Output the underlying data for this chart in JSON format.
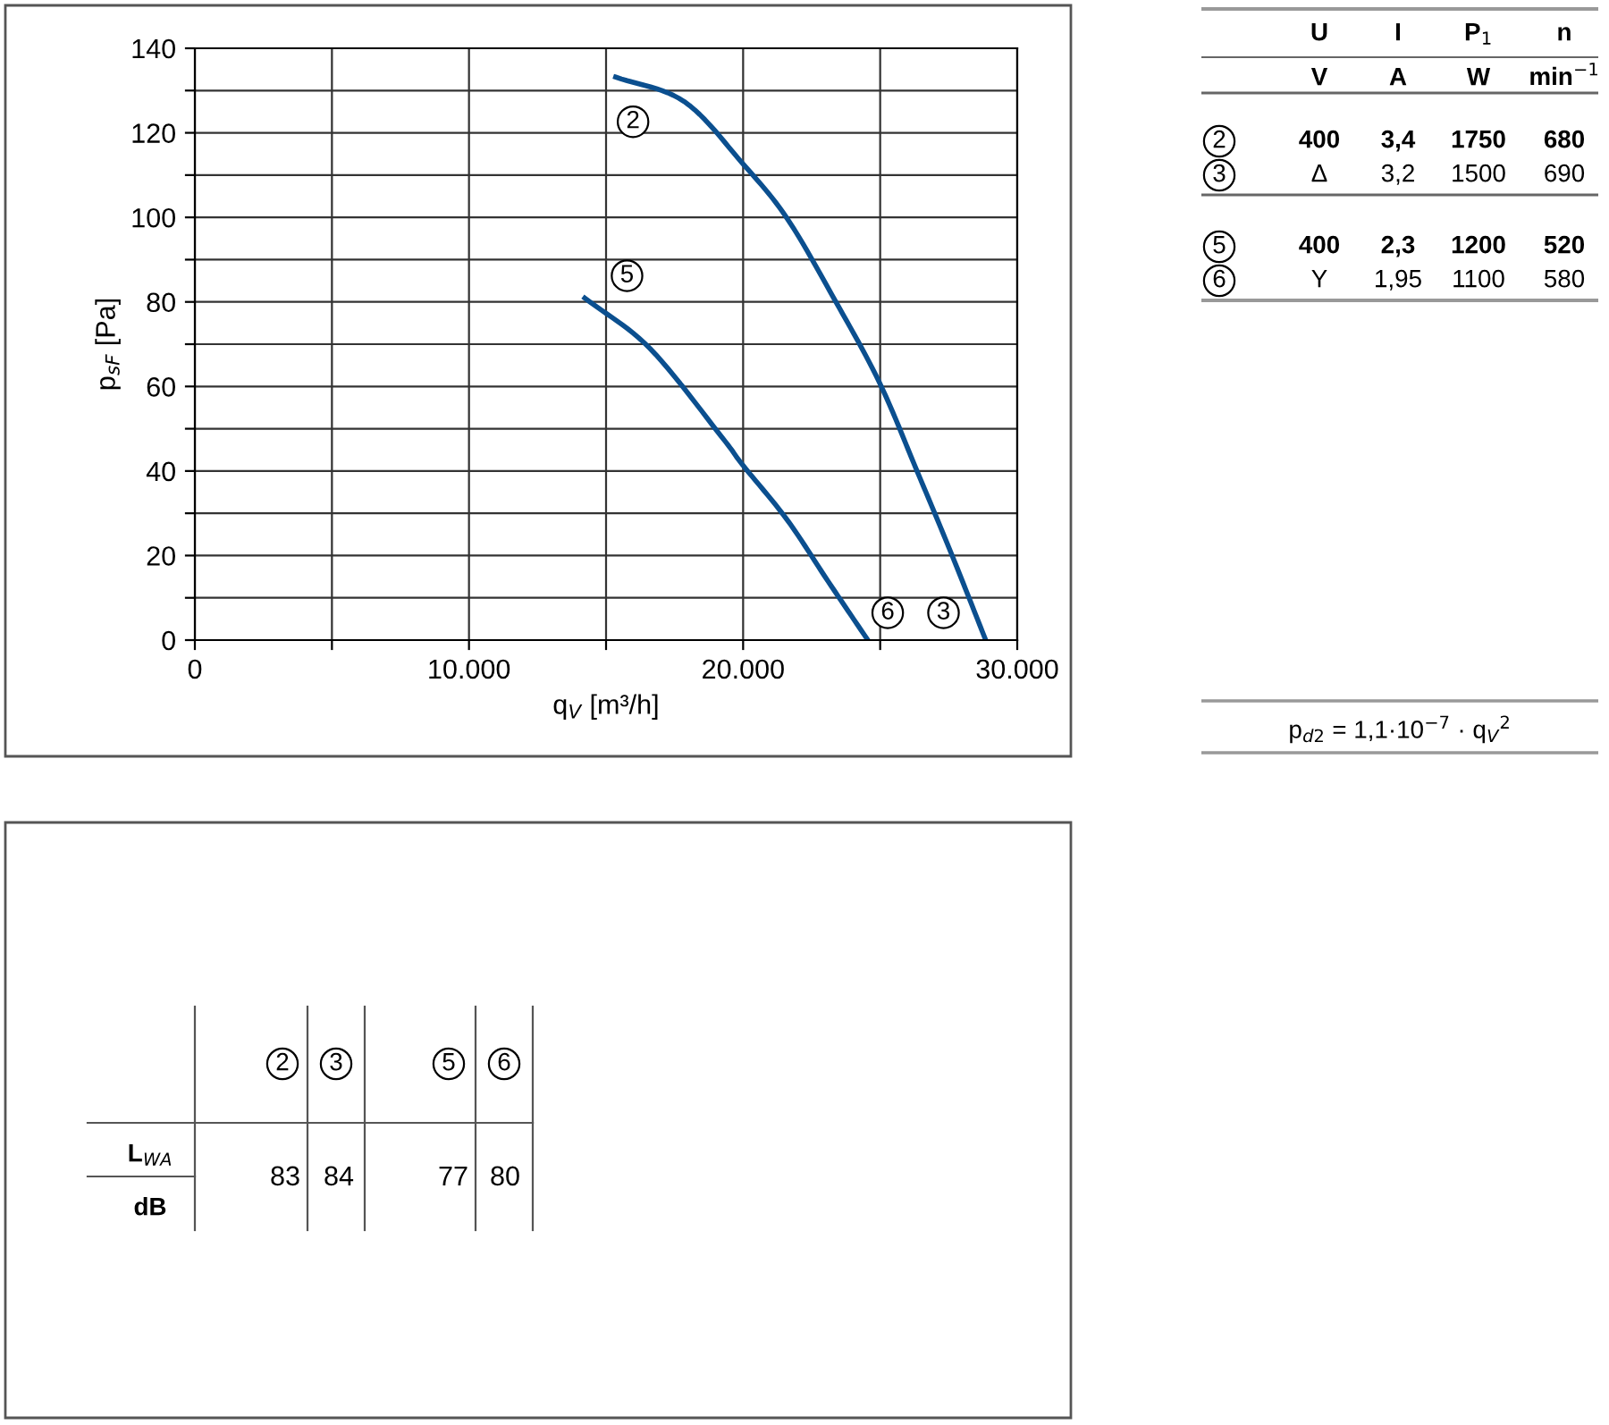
{
  "chart_data": [
    {
      "type": "line",
      "xlabel": "q$_{V}$ [m³/h]",
      "ylabel": "p$_{sF}$ [Pa]",
      "series": [
        {
          "color": "#0b4f8f",
          "x": [
            15350,
            17850,
            19975,
            21600,
            23350,
            24975,
            26350,
            27600,
            28850
          ],
          "values": [
            133.2,
            127.4,
            112.8,
            99.8,
            80.4,
            60.9,
            39.9,
            20.4,
            0
          ]
        },
        {
          "color": "#0b4f8f",
          "x": [
            14225,
            16600,
            19225,
            19975,
            21600,
            23100,
            24550
          ],
          "values": [
            80.9,
            69.0,
            48.0,
            41.5,
            28.5,
            13.9,
            0
          ]
        }
      ],
      "xlim": [
        0,
        30000
      ],
      "ylim": [
        0,
        140
      ],
      "xticks": [
        0,
        {
          "value": 5000,
          "label": null
        },
        {
          "value": 10000,
          "label": "10.000"
        },
        {
          "value": 15000,
          "label": null
        },
        {
          "value": 20000,
          "label": "20.000"
        },
        {
          "value": 25000,
          "label": null
        },
        {
          "value": 30000,
          "label": "30.000"
        }
      ],
      "yticks": [
        0,
        {
          "value": 10,
          "label": null
        },
        20,
        {
          "value": 30,
          "label": null
        },
        40,
        {
          "value": 50,
          "label": null
        },
        60,
        {
          "value": 70,
          "label": null
        },
        80,
        {
          "value": 90,
          "label": null
        },
        100,
        {
          "value": 110,
          "label": null
        },
        120,
        {
          "value": 130,
          "label": null
        },
        140
      ],
      "grid": true,
      "marker": "none",
      "line_style": "solid",
      "annotations": [
        {
          "text": "2",
          "x": 15350,
          "y": 133.2
        },
        {
          "text": "5",
          "x": 14225,
          "y": 80.9
        },
        {
          "text": "6",
          "x": 24550,
          "y": 0
        },
        {
          "text": "3",
          "x": 28850,
          "y": 0
        }
      ]
    },
    {
      "type": "other",
      "annotations": [
        "U",
        "I",
        "P$_{1}$",
        "n",
        "V",
        "A",
        "W",
        "min$^{−1}$",
        "2",
        "400",
        "3,4",
        "1750",
        "680",
        "3",
        "Δ",
        "3,2",
        "1500",
        "690",
        "5",
        "400",
        "2,3",
        "1200",
        "520",
        "6",
        "Y",
        "1,95",
        "1100",
        "580",
        "p$_{d2}$ = 1,1·10$^{−7}$ · q$_{V}$$^{2}$"
      ]
    },
    {
      "type": "other",
      "annotations": [
        "2",
        "3",
        "5",
        "6",
        "L$_{WA}$",
        "dB",
        "83",
        "84",
        "77",
        "80"
      ]
    }
  ]
}
